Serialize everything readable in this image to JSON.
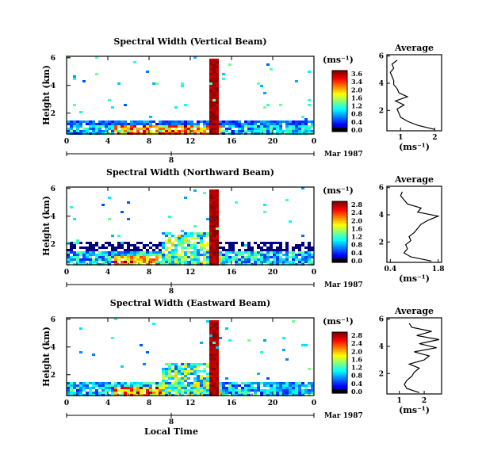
{
  "chart_data": [
    {
      "type": "heatmap",
      "id": "vertical",
      "title": "Spectral Width (Vertical Beam)",
      "ylabel": "Height (km)",
      "yticks": [
        "2",
        "4",
        "6"
      ],
      "ylim": [
        0.5,
        6.1
      ],
      "xticks": [
        "0",
        "4",
        "8",
        "12",
        "16",
        "20",
        "0"
      ],
      "xlim": [
        0,
        24
      ],
      "date_label": "Mar 1987",
      "date_tick": "8",
      "colorbar": {
        "unit": "(ms⁻¹)",
        "ticks": [
          "3.6",
          "3.4",
          "2.0",
          "1.6",
          "1.2",
          "0.8",
          "0.4",
          "0.0"
        ]
      },
      "profile": {
        "title": "Average",
        "xlabel": "(ms⁻¹)",
        "xticks": [
          "1",
          "2"
        ],
        "xlim": [
          0.6,
          2.2
        ],
        "yticks": [
          "2",
          "4",
          "6"
        ],
        "ylim": [
          0.5,
          6.1
        ],
        "heights": [
          0.6,
          0.9,
          1.2,
          1.5,
          1.8,
          2.1,
          2.4,
          2.7,
          3.0,
          3.3,
          3.6,
          3.9,
          4.2,
          4.5,
          4.8,
          5.1,
          5.4,
          5.7
        ],
        "values": [
          2.0,
          1.5,
          1.2,
          1.0,
          0.95,
          0.9,
          1.1,
          0.85,
          1.2,
          0.95,
          0.9,
          0.8,
          0.8,
          0.75,
          0.7,
          0.8,
          0.75,
          0.9
        ]
      }
    },
    {
      "type": "heatmap",
      "id": "northward",
      "title": "Spectral Width (Northward Beam)",
      "ylabel": "Height (km)",
      "yticks": [
        "2",
        "4",
        "6"
      ],
      "ylim": [
        0.5,
        6.1
      ],
      "xticks": [
        "0",
        "4",
        "8",
        "12",
        "16",
        "20",
        "0"
      ],
      "xlim": [
        0,
        24
      ],
      "date_label": "Mar 1987",
      "date_tick": "8",
      "colorbar": {
        "unit": "(ms⁻¹)",
        "ticks": [
          "2.8",
          "2.4",
          "2.0",
          "1.6",
          "1.2",
          "0.8",
          "0.4",
          "0.0"
        ]
      },
      "profile": {
        "title": "Average",
        "xlabel": "(ms⁻¹)",
        "xticks": [
          "0.4",
          "1.8"
        ],
        "xlim": [
          0.3,
          1.9
        ],
        "yticks": [
          "2",
          "4",
          "6"
        ],
        "ylim": [
          0.5,
          6.1
        ],
        "heights": [
          0.6,
          0.9,
          1.2,
          1.5,
          1.8,
          2.1,
          2.4,
          2.7,
          3.0,
          3.3,
          3.6,
          3.9,
          4.2,
          4.5,
          4.8,
          5.1,
          5.4,
          5.7
        ],
        "values": [
          1.6,
          1.0,
          0.8,
          0.9,
          0.85,
          1.0,
          0.95,
          1.1,
          1.2,
          1.3,
          1.5,
          1.8,
          1.2,
          1.3,
          0.9,
          0.8,
          0.7,
          0.75
        ]
      }
    },
    {
      "type": "heatmap",
      "id": "eastward",
      "title": "Spectral Width (Eastward Beam)",
      "ylabel": "Height (km)",
      "yticks": [
        "2",
        "4",
        "6"
      ],
      "ylim": [
        0.5,
        6.1
      ],
      "xticks": [
        "0",
        "4",
        "8",
        "12",
        "16",
        "20",
        "0"
      ],
      "xlim": [
        0,
        24
      ],
      "date_label": "Mar 1987",
      "date_tick": "8",
      "xlabel": "Local Time",
      "colorbar": {
        "unit": "(ms⁻¹)",
        "ticks": [
          "2.8",
          "2.4",
          "2.0",
          "1.6",
          "1.2",
          "0.8",
          "0.4",
          "0.0"
        ]
      },
      "profile": {
        "title": "Average",
        "xlabel": "(ms⁻¹)",
        "xticks": [
          "1",
          "2"
        ],
        "xlim": [
          0.5,
          2.7
        ],
        "yticks": [
          "2",
          "4",
          "6"
        ],
        "ylim": [
          0.5,
          6.1
        ],
        "heights": [
          0.6,
          0.9,
          1.2,
          1.5,
          1.8,
          2.1,
          2.4,
          2.7,
          3.0,
          3.3,
          3.6,
          3.9,
          4.2,
          4.5,
          4.8,
          5.1,
          5.4,
          5.7
        ],
        "values": [
          1.8,
          1.3,
          1.2,
          1.3,
          1.5,
          1.6,
          1.8,
          1.4,
          2.0,
          2.2,
          1.6,
          2.5,
          1.8,
          2.6,
          1.7,
          2.3,
          1.5,
          1.4
        ]
      }
    }
  ]
}
